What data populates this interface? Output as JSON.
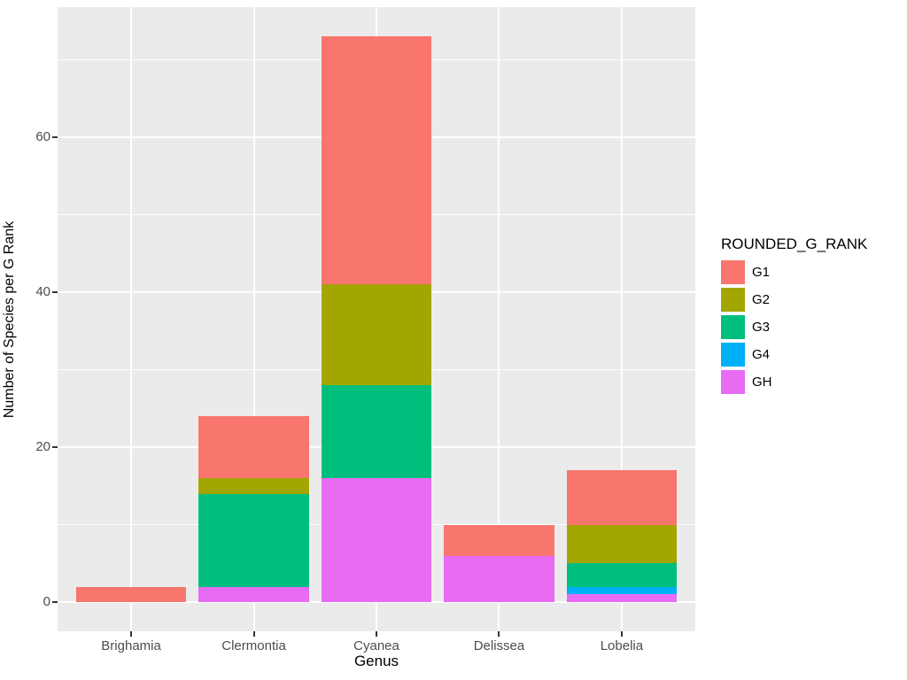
{
  "chart_data": {
    "type": "bar",
    "stacked": true,
    "title": "",
    "xlabel": "Genus",
    "ylabel": "Number of Species per G Rank",
    "categories": [
      "Brighamia",
      "Clermontia",
      "Cyanea",
      "Delissea",
      "Lobelia"
    ],
    "series": [
      {
        "name": "G1",
        "color": "#F8766D",
        "values": [
          2,
          8,
          32,
          4,
          7
        ]
      },
      {
        "name": "G2",
        "color": "#A3A500",
        "values": [
          0,
          2,
          13,
          0,
          5
        ]
      },
      {
        "name": "G3",
        "color": "#00BF7D",
        "values": [
          0,
          12,
          12,
          0,
          3
        ]
      },
      {
        "name": "G4",
        "color": "#00B0F6",
        "values": [
          0,
          0,
          0,
          0,
          1
        ]
      },
      {
        "name": "GH",
        "color": "#E76BF3",
        "values": [
          0,
          2,
          16,
          6,
          1
        ]
      }
    ],
    "stack_order_bottom_to_top": [
      "GH",
      "G4",
      "G3",
      "G2",
      "G1"
    ],
    "totals": [
      2,
      24,
      73,
      10,
      17
    ],
    "legend": {
      "title": "ROUNDED_G_RANK",
      "position": "right"
    },
    "y_axis": {
      "ticks": [
        0,
        20,
        40,
        60
      ],
      "minor_ticks": [
        10,
        30,
        50,
        70
      ],
      "range": [
        -3.75,
        76.75
      ]
    },
    "x_axis": {
      "bar_rel_width": 0.9
    },
    "style": {
      "panel_bg": "#EBEBEB",
      "grid_color": "#FFFFFF",
      "axis_text_color": "#4D4D4D",
      "axis_title_color": "#000000",
      "tick_mark_color": "#333333"
    }
  }
}
